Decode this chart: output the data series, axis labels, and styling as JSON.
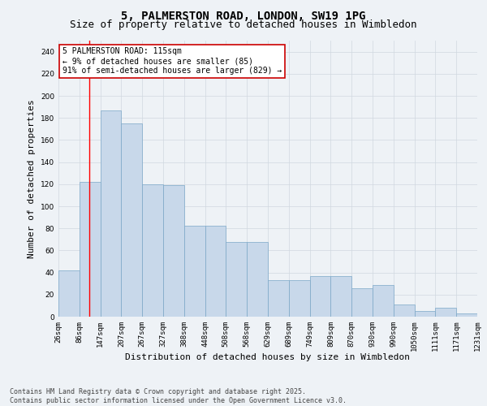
{
  "title_line1": "5, PALMERSTON ROAD, LONDON, SW19 1PG",
  "title_line2": "Size of property relative to detached houses in Wimbledon",
  "xlabel": "Distribution of detached houses by size in Wimbledon",
  "ylabel": "Number of detached properties",
  "bin_labels": [
    "26sqm",
    "86sqm",
    "147sqm",
    "207sqm",
    "267sqm",
    "327sqm",
    "388sqm",
    "448sqm",
    "508sqm",
    "568sqm",
    "629sqm",
    "689sqm",
    "749sqm",
    "809sqm",
    "870sqm",
    "930sqm",
    "990sqm",
    "1050sqm",
    "1111sqm",
    "1171sqm",
    "1231sqm"
  ],
  "bar_heights": [
    42,
    122,
    187,
    175,
    120,
    119,
    82,
    82,
    68,
    68,
    33,
    33,
    37,
    37,
    26,
    29,
    11,
    5,
    8,
    3
  ],
  "bar_color": "#c8d8ea",
  "bar_edge_color": "#7ba7c7",
  "grid_color": "#d0d8e0",
  "background_color": "#eef2f6",
  "annotation_text": "5 PALMERSTON ROAD: 115sqm\n← 9% of detached houses are smaller (85)\n91% of semi-detached houses are larger (829) →",
  "annotation_box_color": "#ffffff",
  "annotation_box_edge": "#cc0000",
  "ylim": [
    0,
    250
  ],
  "yticks": [
    0,
    20,
    40,
    60,
    80,
    100,
    120,
    140,
    160,
    180,
    200,
    220,
    240
  ],
  "footer_text": "Contains HM Land Registry data © Crown copyright and database right 2025.\nContains public sector information licensed under the Open Government Licence v3.0.",
  "title_fontsize": 10,
  "subtitle_fontsize": 9,
  "axis_label_fontsize": 8,
  "tick_fontsize": 6.5,
  "annotation_fontsize": 7,
  "footer_fontsize": 6
}
